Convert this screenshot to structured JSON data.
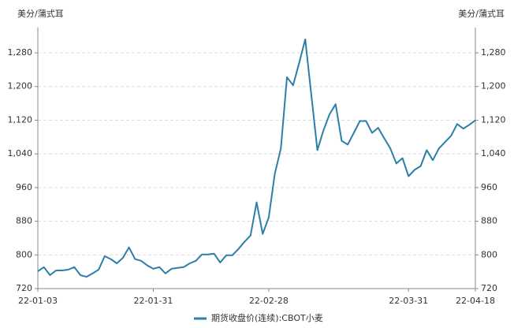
{
  "chart_data": {
    "type": "line",
    "y_label": "美分/蒲式耳",
    "y2_label": "美分/蒲式耳",
    "categories": [
      "22-01-03",
      null,
      null,
      null,
      null,
      null,
      null,
      null,
      null,
      null,
      null,
      null,
      null,
      null,
      null,
      null,
      null,
      null,
      null,
      "22-01-31",
      null,
      null,
      null,
      null,
      null,
      null,
      null,
      null,
      null,
      null,
      null,
      null,
      null,
      null,
      null,
      null,
      null,
      null,
      "22-02-28",
      null,
      null,
      null,
      null,
      null,
      null,
      null,
      null,
      null,
      null,
      null,
      null,
      null,
      null,
      null,
      null,
      null,
      null,
      null,
      null,
      null,
      null,
      "22-03-31",
      null,
      null,
      null,
      null,
      null,
      null,
      null,
      null,
      null,
      null,
      "22-04-18"
    ],
    "series": [
      {
        "name": "期货收盘价(连续):CBOT小麦",
        "color": "#2b7fa8",
        "values": [
          761,
          771,
          752,
          763,
          763,
          765,
          771,
          752,
          748,
          756,
          765,
          797,
          790,
          780,
          793,
          818,
          790,
          786,
          775,
          767,
          771,
          756,
          767,
          769,
          771,
          780,
          786,
          801,
          801,
          803,
          782,
          799,
          799,
          814,
          831,
          846,
          925,
          850,
          889,
          993,
          1053,
          1222,
          1203,
          1256,
          1312,
          1180,
          1049,
          1096,
          1134,
          1158,
          1071,
          1062,
          1090,
          1118,
          1118,
          1090,
          1102,
          1077,
          1053,
          1017,
          1030,
          987,
          1002,
          1011,
          1049,
          1025,
          1053,
          1068,
          1083,
          1111,
          1100,
          1109,
          1120
        ]
      }
    ],
    "ylim": [
      720,
      1340
    ],
    "yticks": [
      720,
      800,
      880,
      960,
      {
        "value": 1040,
        "label": "1,040"
      },
      {
        "value": 1120,
        "label": "1,120"
      },
      {
        "value": 1200,
        "label": "1,200"
      },
      {
        "value": 1280,
        "label": "1,280"
      }
    ],
    "grid": true
  }
}
